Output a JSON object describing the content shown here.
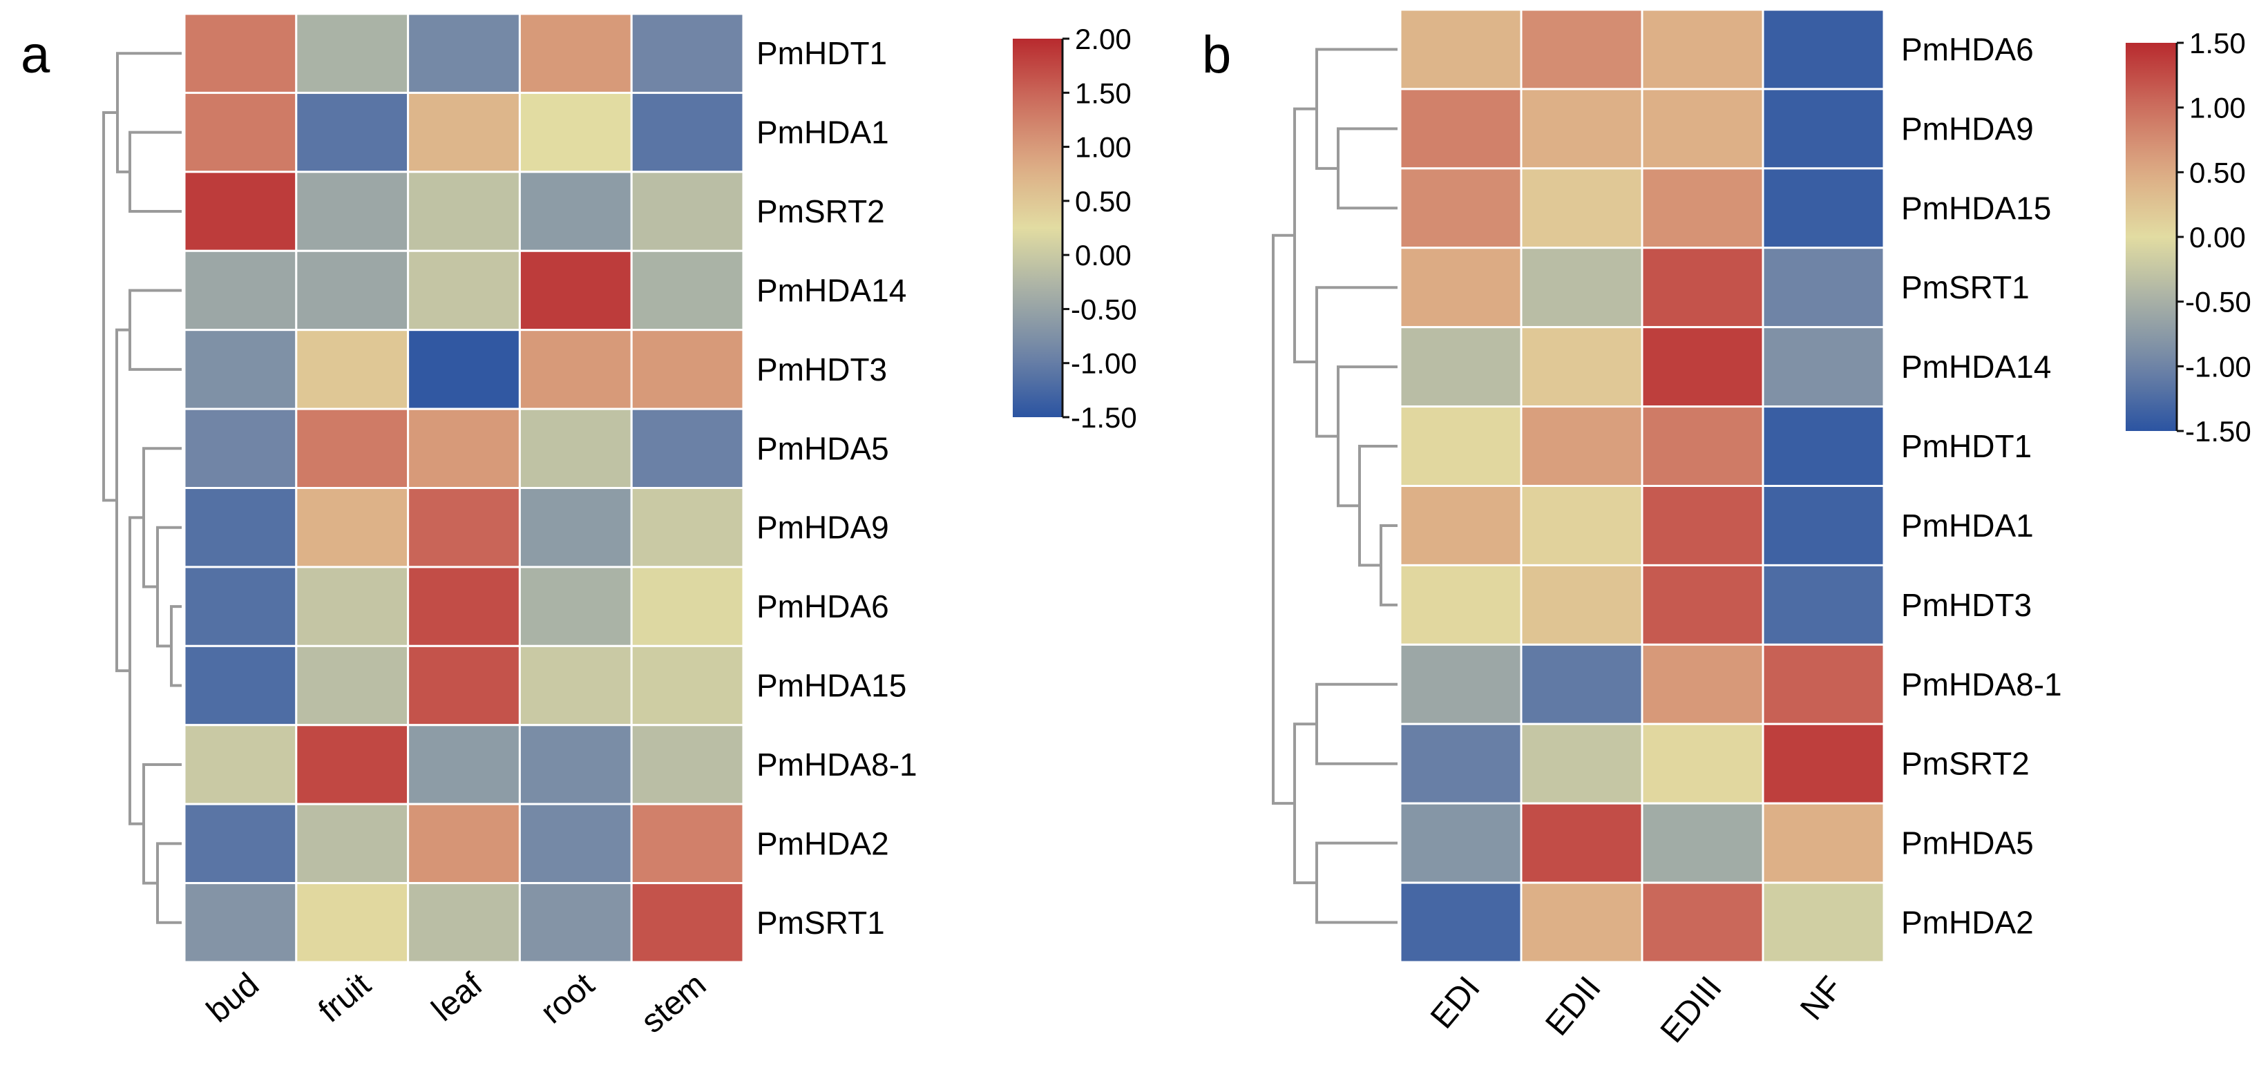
{
  "chart_data": [
    {
      "type": "heatmap",
      "panel_label": "a",
      "columns": [
        "bud",
        "fruit",
        "leaf",
        "root",
        "stem"
      ],
      "rows": [
        "PmHDT1",
        "PmHDA1",
        "PmSRT2",
        "PmHDA14",
        "PmHDT3",
        "PmHDA5",
        "PmHDA9",
        "PmHDA6",
        "PmHDA15",
        "PmHDA8-1",
        "PmHDA2",
        "PmSRT1"
      ],
      "values": [
        [
          1.3,
          -0.3,
          -0.85,
          1.0,
          -0.9
        ],
        [
          1.3,
          -1.1,
          0.7,
          0.25,
          -1.1
        ],
        [
          1.85,
          -0.45,
          -0.1,
          -0.6,
          -0.15
        ],
        [
          -0.45,
          -0.45,
          -0.05,
          1.85,
          -0.3
        ],
        [
          -0.75,
          0.5,
          -1.45,
          1.0,
          1.0
        ],
        [
          -0.9,
          1.3,
          1.0,
          -0.1,
          -0.95
        ],
        [
          -1.15,
          0.75,
          1.5,
          -0.6,
          0.0
        ],
        [
          -1.15,
          -0.05,
          1.7,
          -0.3,
          0.2
        ],
        [
          -1.2,
          -0.15,
          1.65,
          0.0,
          0.05
        ],
        [
          0.0,
          1.75,
          -0.6,
          -0.8,
          -0.15
        ],
        [
          -1.1,
          -0.15,
          1.05,
          -0.85,
          1.25
        ],
        [
          -0.7,
          0.3,
          -0.15,
          -0.7,
          1.65
        ]
      ],
      "colorbar": {
        "range": [
          -1.5,
          2.0
        ],
        "ticks": [
          "2.00",
          "1.50",
          "1.00",
          "0.50",
          "0.00",
          "-0.50",
          "-1.00",
          "-1.50"
        ]
      },
      "row_dendrogram": true
    },
    {
      "type": "heatmap",
      "panel_label": "b",
      "columns": [
        "EDI",
        "EDII",
        "EDIII",
        "NF"
      ],
      "rows": [
        "PmHDA6",
        "PmHDA9",
        "PmHDA15",
        "PmSRT1",
        "PmHDA14",
        "PmHDT1",
        "PmHDA1",
        "PmHDT3",
        "PmHDA8-1",
        "PmSRT2",
        "PmHDA5",
        "PmHDA2"
      ],
      "values": [
        [
          0.4,
          0.75,
          0.45,
          -1.4
        ],
        [
          0.85,
          0.45,
          0.45,
          -1.4
        ],
        [
          0.75,
          0.2,
          0.7,
          -1.4
        ],
        [
          0.5,
          -0.35,
          1.2,
          -1.0
        ],
        [
          -0.35,
          0.2,
          1.35,
          -0.85
        ],
        [
          0.05,
          0.6,
          0.9,
          -1.4
        ],
        [
          0.45,
          0.1,
          1.15,
          -1.35
        ],
        [
          0.05,
          0.25,
          1.15,
          -1.25
        ],
        [
          -0.6,
          -1.1,
          0.65,
          1.1
        ],
        [
          -1.05,
          -0.25,
          0.05,
          1.35
        ],
        [
          -0.8,
          1.25,
          -0.55,
          0.45
        ],
        [
          -1.3,
          0.45,
          1.05,
          -0.15
        ]
      ],
      "colorbar": {
        "range": [
          -1.5,
          1.5
        ],
        "ticks": [
          "1.50",
          "1.00",
          "0.50",
          "0.00",
          "-0.50",
          "-1.00",
          "-1.50"
        ]
      },
      "row_dendrogram": true
    }
  ],
  "colormap": [
    "#2b54a2",
    "#6f84a6",
    "#a7b0a6",
    "#e2dca2",
    "#dcab84",
    "#cc6f5f",
    "#b82a2e"
  ]
}
